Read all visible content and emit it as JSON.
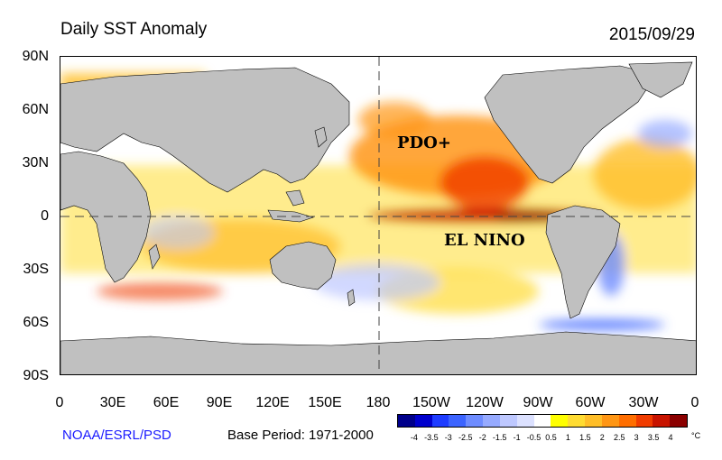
{
  "title": "Daily SST Anomaly",
  "date": "2015/09/29",
  "lat_labels": [
    "90N",
    "60N",
    "30N",
    "0",
    "30S",
    "60S",
    "90S"
  ],
  "lon_labels": [
    "0",
    "30E",
    "60E",
    "90E",
    "120E",
    "150E",
    "180",
    "150W",
    "120W",
    "90W",
    "60W",
    "30W",
    "0"
  ],
  "annotations": {
    "pdo": "PDO+",
    "elnino": "EL NINO"
  },
  "credit": "NOAA/ESRL/PSD",
  "base_period": "Base Period: 1971-2000",
  "colorbar": {
    "labels": [
      "-4",
      "-3.5",
      "-3",
      "-2.5",
      "-2",
      "-1.5",
      "-1",
      "-0.5",
      "0.5",
      "1",
      "1.5",
      "2",
      "2.5",
      "3",
      "3.5",
      "4"
    ],
    "unit": "°C",
    "colors": [
      "#00008b",
      "#0000cd",
      "#1e3cff",
      "#3c64ff",
      "#6e8cff",
      "#96aaff",
      "#bec8ff",
      "#dce1ff",
      "#ffffff",
      "#ffff00",
      "#ffdc32",
      "#ffbe28",
      "#ff9614",
      "#ff6e00",
      "#f03c00",
      "#c81400",
      "#8b0000"
    ]
  },
  "colors": {
    "land": "#c0c0c0",
    "ocean_neutral": "#ffffff"
  }
}
